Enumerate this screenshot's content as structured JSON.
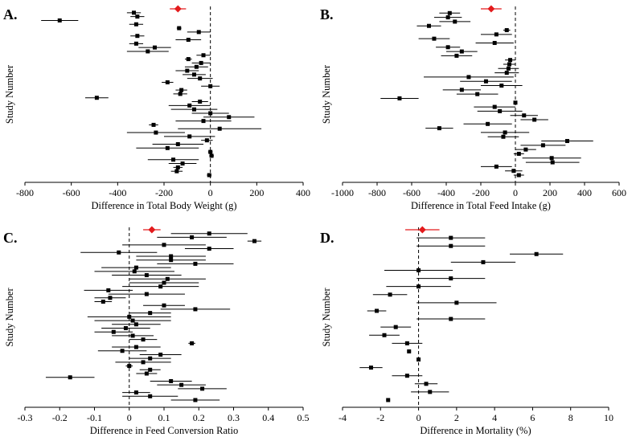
{
  "chart_data": [
    {
      "panel": "A.",
      "type": "scatter",
      "subtype": "forest-plot",
      "xlabel": "Difference in Total Body Weight (g)",
      "ylabel": "Study Number",
      "xlim": [
        -800,
        400
      ],
      "xticks": [
        -800,
        -600,
        -400,
        -200,
        0,
        200,
        400
      ],
      "reference_line": 0,
      "pooled": {
        "est": -140,
        "lo": -175,
        "hi": -105,
        "color": "#e31a1c"
      },
      "studies": [
        {
          "est": -330,
          "lo": -360,
          "hi": -300
        },
        {
          "est": -315,
          "lo": -345,
          "hi": -285
        },
        {
          "est": -650,
          "lo": -730,
          "hi": -570
        },
        {
          "est": -320,
          "lo": -350,
          "hi": -290
        },
        {
          "est": -135,
          "lo": -145,
          "hi": -125
        },
        {
          "est": -50,
          "lo": -100,
          "hi": 0
        },
        {
          "est": -315,
          "lo": -345,
          "hi": -285
        },
        {
          "est": -95,
          "lo": -150,
          "hi": -40
        },
        {
          "est": -320,
          "lo": -350,
          "hi": -290
        },
        {
          "est": -240,
          "lo": -310,
          "hi": -170
        },
        {
          "est": -270,
          "lo": -360,
          "hi": -180
        },
        {
          "est": -30,
          "lo": -60,
          "hi": 0
        },
        {
          "est": -95,
          "lo": -110,
          "hi": -80
        },
        {
          "est": -40,
          "lo": -80,
          "hi": 0
        },
        {
          "est": -60,
          "lo": -110,
          "hi": -10
        },
        {
          "est": -100,
          "lo": -150,
          "hi": -50
        },
        {
          "est": -70,
          "lo": -120,
          "hi": -20
        },
        {
          "est": -45,
          "lo": -100,
          "hi": 10
        },
        {
          "est": -185,
          "lo": -210,
          "hi": -160
        },
        {
          "est": 0,
          "lo": -40,
          "hi": 40
        },
        {
          "est": -125,
          "lo": -150,
          "hi": -100
        },
        {
          "est": -130,
          "lo": -160,
          "hi": -100
        },
        {
          "est": -490,
          "lo": -540,
          "hi": -440
        },
        {
          "est": -45,
          "lo": -80,
          "hi": -10
        },
        {
          "est": -90,
          "lo": -180,
          "hi": 0
        },
        {
          "est": -70,
          "lo": -170,
          "hi": 30
        },
        {
          "est": 0,
          "lo": -80,
          "hi": 80
        },
        {
          "est": 80,
          "lo": -30,
          "hi": 190
        },
        {
          "est": -30,
          "lo": -150,
          "hi": 90
        },
        {
          "est": -245,
          "lo": -265,
          "hi": -225
        },
        {
          "est": 40,
          "lo": -140,
          "hi": 220
        },
        {
          "est": -235,
          "lo": -360,
          "hi": -110
        },
        {
          "est": -90,
          "lo": -200,
          "hi": 20
        },
        {
          "est": -15,
          "lo": -40,
          "hi": 10
        },
        {
          "est": -140,
          "lo": -250,
          "hi": -30
        },
        {
          "est": -185,
          "lo": -320,
          "hi": -50
        },
        {
          "est": 0,
          "lo": -10,
          "hi": 10
        },
        {
          "est": 5,
          "lo": -5,
          "hi": 15
        },
        {
          "est": -160,
          "lo": -270,
          "hi": -50
        },
        {
          "est": -120,
          "lo": -180,
          "hi": -60
        },
        {
          "est": -140,
          "lo": -160,
          "hi": -120
        },
        {
          "est": -145,
          "lo": -170,
          "hi": -120
        },
        {
          "est": -5,
          "lo": -15,
          "hi": 5
        }
      ]
    },
    {
      "panel": "B.",
      "type": "scatter",
      "subtype": "forest-plot",
      "xlabel": "Difference in Total Feed Intake (g)",
      "ylabel": "Study Number",
      "xlim": [
        -1000,
        600
      ],
      "xticks": [
        -1000,
        -800,
        -600,
        -400,
        -200,
        0,
        200,
        400,
        600
      ],
      "reference_line": 0,
      "pooled": {
        "est": -140,
        "lo": -200,
        "hi": -80,
        "color": "#e31a1c"
      },
      "studies": [
        {
          "est": -380,
          "lo": -440,
          "hi": -320
        },
        {
          "est": -390,
          "lo": -470,
          "hi": -310
        },
        {
          "est": -350,
          "lo": -440,
          "hi": -260
        },
        {
          "est": -500,
          "lo": -570,
          "hi": -430
        },
        {
          "est": -50,
          "lo": -70,
          "hi": -30
        },
        {
          "est": -110,
          "lo": -200,
          "hi": -20
        },
        {
          "est": -470,
          "lo": -560,
          "hi": -380
        },
        {
          "est": -120,
          "lo": -230,
          "hi": -10
        },
        {
          "est": -390,
          "lo": -460,
          "hi": -320
        },
        {
          "est": -310,
          "lo": -400,
          "hi": -220
        },
        {
          "est": -340,
          "lo": -430,
          "hi": -250
        },
        {
          "est": -30,
          "lo": -60,
          "hi": 0
        },
        {
          "est": -35,
          "lo": -70,
          "hi": 0
        },
        {
          "est": -40,
          "lo": -100,
          "hi": 20
        },
        {
          "est": -50,
          "lo": -120,
          "hi": 20
        },
        {
          "est": -270,
          "lo": -530,
          "hi": -10
        },
        {
          "est": -170,
          "lo": -320,
          "hi": -20
        },
        {
          "est": -80,
          "lo": -200,
          "hi": 40
        },
        {
          "est": -310,
          "lo": -420,
          "hi": -200
        },
        {
          "est": -220,
          "lo": -340,
          "hi": -100
        },
        {
          "est": -670,
          "lo": -780,
          "hi": -560
        },
        {
          "est": 0,
          "lo": -10,
          "hi": 10
        },
        {
          "est": -120,
          "lo": -240,
          "hi": 0
        },
        {
          "est": -90,
          "lo": -220,
          "hi": 40
        },
        {
          "est": 50,
          "lo": -30,
          "hi": 130
        },
        {
          "est": 110,
          "lo": 30,
          "hi": 190
        },
        {
          "est": -160,
          "lo": -300,
          "hi": -20
        },
        {
          "est": -440,
          "lo": -520,
          "hi": -360
        },
        {
          "est": -60,
          "lo": -200,
          "hi": 80
        },
        {
          "est": -70,
          "lo": -160,
          "hi": 20
        },
        {
          "est": 300,
          "lo": 150,
          "hi": 450
        },
        {
          "est": 160,
          "lo": 30,
          "hi": 290
        },
        {
          "est": 60,
          "lo": 0,
          "hi": 120
        },
        {
          "est": 20,
          "lo": -10,
          "hi": 50
        },
        {
          "est": 210,
          "lo": 40,
          "hi": 380
        },
        {
          "est": 215,
          "lo": 60,
          "hi": 370
        },
        {
          "est": -110,
          "lo": -200,
          "hi": -20
        },
        {
          "est": -10,
          "lo": -60,
          "hi": 40
        },
        {
          "est": 20,
          "lo": -10,
          "hi": 50
        }
      ]
    },
    {
      "panel": "C.",
      "type": "scatter",
      "subtype": "forest-plot",
      "xlabel": "Difference in Feed Conversion Ratio",
      "ylabel": "Study Number",
      "xlim": [
        -0.3,
        0.5
      ],
      "xticks": [
        -0.3,
        -0.2,
        -0.1,
        0,
        0.1,
        0.2,
        0.3,
        0.4,
        0.5
      ],
      "reference_line": 0,
      "pooled": {
        "est": 0.065,
        "lo": 0.04,
        "hi": 0.09,
        "color": "#e31a1c"
      },
      "studies": [
        {
          "est": 0.23,
          "lo": 0.12,
          "hi": 0.34
        },
        {
          "est": 0.18,
          "lo": 0.08,
          "hi": 0.28
        },
        {
          "est": 0.36,
          "lo": 0.34,
          "hi": 0.38
        },
        {
          "est": 0.1,
          "lo": -0.02,
          "hi": 0.22
        },
        {
          "est": 0.23,
          "lo": 0.16,
          "hi": 0.3
        },
        {
          "est": -0.03,
          "lo": -0.14,
          "hi": 0.08
        },
        {
          "est": 0.12,
          "lo": 0.02,
          "hi": 0.22
        },
        {
          "est": 0.12,
          "lo": 0.02,
          "hi": 0.22
        },
        {
          "est": 0.19,
          "lo": 0.08,
          "hi": 0.3
        },
        {
          "est": 0.02,
          "lo": -0.08,
          "hi": 0.12
        },
        {
          "est": 0.015,
          "lo": -0.1,
          "hi": 0.13
        },
        {
          "est": 0.05,
          "lo": -0.05,
          "hi": 0.15
        },
        {
          "est": 0.11,
          "lo": 0.0,
          "hi": 0.22
        },
        {
          "est": 0.1,
          "lo": 0.0,
          "hi": 0.2
        },
        {
          "est": 0.09,
          "lo": -0.02,
          "hi": 0.2
        },
        {
          "est": -0.06,
          "lo": -0.13,
          "hi": 0.01
        },
        {
          "est": 0.05,
          "lo": -0.06,
          "hi": 0.16
        },
        {
          "est": -0.055,
          "lo": -0.1,
          "hi": -0.01
        },
        {
          "est": -0.075,
          "lo": -0.1,
          "hi": -0.05
        },
        {
          "est": 0.1,
          "lo": 0.04,
          "hi": 0.16
        },
        {
          "est": 0.19,
          "lo": 0.09,
          "hi": 0.29
        },
        {
          "est": 0.06,
          "lo": 0.0,
          "hi": 0.12
        },
        {
          "est": 0.0,
          "lo": -0.12,
          "hi": 0.12
        },
        {
          "est": 0.01,
          "lo": -0.1,
          "hi": 0.12
        },
        {
          "est": 0.02,
          "lo": -0.05,
          "hi": 0.09
        },
        {
          "est": -0.01,
          "lo": -0.08,
          "hi": 0.06
        },
        {
          "est": -0.045,
          "lo": -0.1,
          "hi": 0.01
        },
        {
          "est": 0.01,
          "lo": -0.05,
          "hi": 0.07
        },
        {
          "est": 0.04,
          "lo": 0.0,
          "hi": 0.08
        },
        {
          "est": 0.18,
          "lo": 0.17,
          "hi": 0.19
        },
        {
          "est": 0.02,
          "lo": -0.05,
          "hi": 0.09
        },
        {
          "est": -0.02,
          "lo": -0.09,
          "hi": 0.05
        },
        {
          "est": 0.09,
          "lo": 0.03,
          "hi": 0.15
        },
        {
          "est": 0.06,
          "lo": 0.0,
          "hi": 0.12
        },
        {
          "est": 0.04,
          "lo": -0.04,
          "hi": 0.12
        },
        {
          "est": 0.0,
          "lo": -0.01,
          "hi": 0.01
        },
        {
          "est": 0.06,
          "lo": 0.03,
          "hi": 0.09
        },
        {
          "est": 0.05,
          "lo": 0.02,
          "hi": 0.08
        },
        {
          "est": -0.17,
          "lo": -0.24,
          "hi": -0.1
        },
        {
          "est": 0.12,
          "lo": 0.06,
          "hi": 0.18
        },
        {
          "est": 0.15,
          "lo": 0.08,
          "hi": 0.22
        },
        {
          "est": 0.21,
          "lo": 0.14,
          "hi": 0.28
        },
        {
          "est": 0.02,
          "lo": -0.02,
          "hi": 0.06
        },
        {
          "est": 0.06,
          "lo": -0.02,
          "hi": 0.14
        },
        {
          "est": 0.19,
          "lo": 0.12,
          "hi": 0.26
        }
      ]
    },
    {
      "panel": "D.",
      "type": "scatter",
      "subtype": "forest-plot",
      "xlabel": "Difference in Mortality (%)",
      "ylabel": "Study Number",
      "xlim": [
        -4,
        10
      ],
      "xticks": [
        -4,
        -2,
        0,
        2,
        4,
        6,
        8,
        10
      ],
      "reference_line": 0,
      "pooled": {
        "est": 0.2,
        "lo": -0.7,
        "hi": 1.1,
        "color": "#e31a1c"
      },
      "studies": [
        {
          "est": 1.7,
          "lo": -0.1,
          "hi": 3.5
        },
        {
          "est": 1.7,
          "lo": -0.1,
          "hi": 3.5
        },
        {
          "est": 6.2,
          "lo": 4.8,
          "hi": 7.6
        },
        {
          "est": 3.4,
          "lo": 1.7,
          "hi": 5.1
        },
        {
          "est": 0.0,
          "lo": -1.8,
          "hi": 1.8
        },
        {
          "est": 1.7,
          "lo": -0.1,
          "hi": 3.5
        },
        {
          "est": 0.0,
          "lo": -1.7,
          "hi": 1.7
        },
        {
          "est": -1.5,
          "lo": -2.4,
          "hi": -0.6
        },
        {
          "est": 2.0,
          "lo": -0.1,
          "hi": 4.1
        },
        {
          "est": -2.2,
          "lo": -2.7,
          "hi": -1.7
        },
        {
          "est": 1.7,
          "lo": -0.1,
          "hi": 3.5
        },
        {
          "est": -1.2,
          "lo": -2.0,
          "hi": -0.4
        },
        {
          "est": -1.8,
          "lo": -2.6,
          "hi": -1.0
        },
        {
          "est": -0.6,
          "lo": -1.4,
          "hi": 0.2
        },
        {
          "est": -0.5,
          "lo": -0.6,
          "hi": -0.4
        },
        {
          "est": 0.0,
          "lo": -0.1,
          "hi": 0.1
        },
        {
          "est": -2.5,
          "lo": -3.1,
          "hi": -1.9
        },
        {
          "est": -0.6,
          "lo": -1.4,
          "hi": 0.2
        },
        {
          "est": 0.4,
          "lo": -0.2,
          "hi": 1.0
        },
        {
          "est": 0.6,
          "lo": -0.4,
          "hi": 1.6
        },
        {
          "est": -1.6,
          "lo": -1.7,
          "hi": -1.5
        }
      ]
    }
  ]
}
